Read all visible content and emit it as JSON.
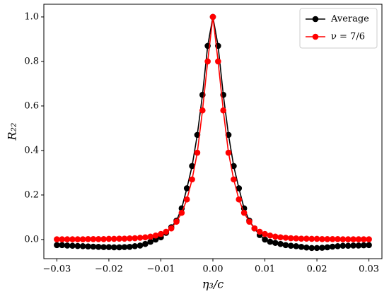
{
  "chart_data": {
    "type": "line",
    "xlabel": "η₃/c",
    "ylabel": "R₂₂",
    "x": [
      -0.03,
      -0.029,
      -0.028,
      -0.027,
      -0.026,
      -0.025,
      -0.024,
      -0.023,
      -0.022,
      -0.021,
      -0.02,
      -0.019,
      -0.018,
      -0.017,
      -0.016,
      -0.015,
      -0.014,
      -0.013,
      -0.012,
      -0.011,
      -0.01,
      -0.009,
      -0.008,
      -0.007,
      -0.006,
      -0.005,
      -0.004,
      -0.003,
      -0.002,
      -0.001,
      0,
      0.001,
      0.002,
      0.003,
      0.004,
      0.005,
      0.006,
      0.007,
      0.008,
      0.009,
      0.01,
      0.011,
      0.012,
      0.013,
      0.014,
      0.015,
      0.016,
      0.017,
      0.018,
      0.019,
      0.02,
      0.021,
      0.022,
      0.023,
      0.024,
      0.025,
      0.026,
      0.027,
      0.028,
      0.029,
      0.03
    ],
    "series": [
      {
        "name": "Average",
        "color": "#000000",
        "values": [
          -0.025,
          -0.025,
          -0.027,
          -0.028,
          -0.029,
          -0.03,
          -0.031,
          -0.032,
          -0.033,
          -0.034,
          -0.034,
          -0.035,
          -0.035,
          -0.034,
          -0.033,
          -0.03,
          -0.027,
          -0.02,
          -0.01,
          0.0,
          0.01,
          0.03,
          0.055,
          0.085,
          0.14,
          0.23,
          0.33,
          0.47,
          0.65,
          0.87,
          1.0,
          0.87,
          0.65,
          0.47,
          0.33,
          0.23,
          0.14,
          0.085,
          0.05,
          0.02,
          0.0,
          -0.01,
          -0.015,
          -0.02,
          -0.025,
          -0.028,
          -0.03,
          -0.033,
          -0.036,
          -0.038,
          -0.038,
          -0.037,
          -0.035,
          -0.032,
          -0.03,
          -0.028,
          -0.028,
          -0.027,
          -0.027,
          -0.026,
          -0.025
        ]
      },
      {
        "name": "ν = 7/6",
        "color": "#ff0000",
        "values": [
          0.001,
          0.001,
          0.001,
          0.001,
          0.001,
          0.001,
          0.002,
          0.002,
          0.002,
          0.002,
          0.003,
          0.003,
          0.004,
          0.004,
          0.005,
          0.006,
          0.008,
          0.01,
          0.013,
          0.018,
          0.025,
          0.035,
          0.05,
          0.08,
          0.12,
          0.18,
          0.27,
          0.39,
          0.58,
          0.8,
          1.0,
          0.8,
          0.58,
          0.39,
          0.27,
          0.18,
          0.12,
          0.08,
          0.05,
          0.035,
          0.025,
          0.018,
          0.013,
          0.01,
          0.008,
          0.006,
          0.005,
          0.004,
          0.004,
          0.003,
          0.003,
          0.002,
          0.002,
          0.002,
          0.002,
          0.001,
          0.001,
          0.001,
          0.001,
          0.001,
          0.001
        ]
      }
    ],
    "xlim": [
      -0.0325,
      0.0325
    ],
    "ylim": [
      -0.086,
      1.057
    ],
    "xticks": [
      {
        "value": -0.03,
        "label": "−0.03"
      },
      {
        "value": -0.02,
        "label": "−0.02"
      },
      {
        "value": -0.01,
        "label": "−0.01"
      },
      {
        "value": 0,
        "label": "0.00"
      },
      0.01,
      0.02,
      0.03
    ],
    "yticks": [
      {
        "value": 0,
        "label": "0.0"
      },
      0.2,
      0.4,
      0.6,
      0.8,
      {
        "value": 1,
        "label": "1.0"
      }
    ],
    "legend": "upper right",
    "grid": false
  }
}
